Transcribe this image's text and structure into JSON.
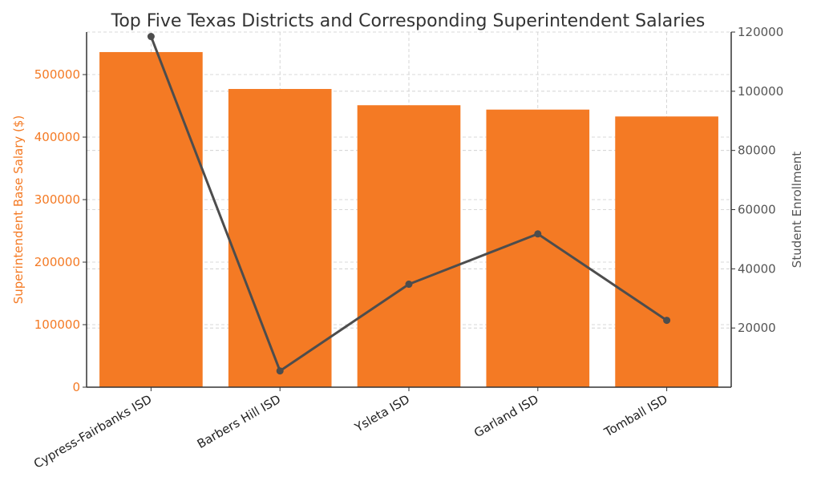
{
  "chart_data": {
    "type": "bar",
    "title": "Top Five Texas Districts and Corresponding Superintendent Salaries",
    "categories": [
      "Cypress-Fairbanks ISD",
      "Barbers Hill ISD",
      "Ysleta ISD",
      "Garland ISD",
      "Tomball ISD"
    ],
    "series": [
      {
        "name": "Superintendent Base Salary ($)",
        "type": "bar",
        "axis": "left",
        "values": [
          536000,
          477000,
          451000,
          444000,
          433000
        ]
      },
      {
        "name": "Student Enrollment",
        "type": "line",
        "axis": "right",
        "values": [
          118500,
          5500,
          34800,
          51800,
          22600
        ]
      }
    ],
    "ylabel": "Superintendent Base Salary ($)",
    "y2label": "Student Enrollment",
    "ylim": [
      0,
      568000
    ],
    "y2lim": [
      0,
      120000
    ],
    "yticks": [
      0,
      100000,
      200000,
      300000,
      400000,
      500000
    ],
    "yticklabels": [
      "0",
      "100000",
      "200000",
      "300000",
      "400000",
      "500000"
    ],
    "y2ticks": [
      20000,
      40000,
      60000,
      80000,
      100000,
      120000
    ],
    "y2ticklabels": [
      "20000",
      "40000",
      "60000",
      "80000",
      "100000",
      "120000"
    ],
    "grid": true,
    "colors": {
      "bar": "#f47a24",
      "line": "#4d4d4d",
      "left_axis_text": "#f47a24",
      "right_axis_text": "#555555",
      "grid": "#cccccc"
    }
  }
}
